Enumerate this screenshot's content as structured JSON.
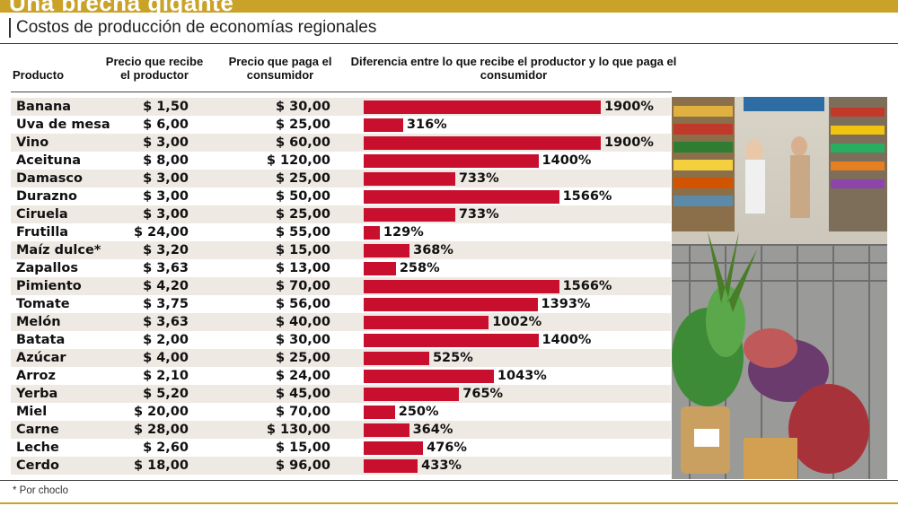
{
  "title": "Una brecha gigante",
  "subtitle": "Costos de producción de economías regionales",
  "headers": {
    "producto": "Producto",
    "recibe": "Precio que recibe el productor",
    "paga": "Precio que paga el consumidor",
    "diferencia": "Diferencia entre lo que recibe el productor y lo que paga el consumidor"
  },
  "footnote": "* Por choclo",
  "colors": {
    "bar": "#c8102e",
    "stripe": "#efe9e3",
    "title_bar": "#c9a227"
  },
  "chart_data": {
    "type": "bar",
    "orientation": "horizontal",
    "categories": [
      "Banana",
      "Uva de mesa",
      "Vino",
      "Aceituna",
      "Damasco",
      "Durazno",
      "Ciruela",
      "Frutilla",
      "Maíz dulce*",
      "Zapallos",
      "Pimiento",
      "Tomate",
      "Melón",
      "Batata",
      "Azúcar",
      "Arroz",
      "Yerba",
      "Miel",
      "Carne",
      "Leche",
      "Cerdo"
    ],
    "precio_productor": [
      "$ 1,50",
      "$ 6,00",
      "$ 3,00",
      "$ 8,00",
      "$ 3,00",
      "$ 3,00",
      "$ 3,00",
      "$ 24,00",
      "$ 3,20",
      "$ 3,63",
      "$ 4,20",
      "$ 3,75",
      "$ 3,63",
      "$ 2,00",
      "$ 4,00",
      "$ 2,10",
      "$ 5,20",
      "$ 20,00",
      "$ 28,00",
      "$ 2,60",
      "$ 18,00"
    ],
    "precio_consumidor": [
      "$ 30,00",
      "$ 25,00",
      "$ 60,00",
      "$ 120,00",
      "$ 25,00",
      "$ 50,00",
      "$ 25,00",
      "$ 55,00",
      "$ 15,00",
      "$ 13,00",
      "$ 70,00",
      "$ 56,00",
      "$ 40,00",
      "$ 30,00",
      "$ 25,00",
      "$ 24,00",
      "$ 45,00",
      "$ 70,00",
      "$ 130,00",
      "$ 15,00",
      "$ 96,00"
    ],
    "values": [
      1900,
      316,
      1900,
      1400,
      733,
      1566,
      733,
      129,
      368,
      258,
      1566,
      1393,
      1002,
      1400,
      525,
      1043,
      765,
      250,
      364,
      476,
      433
    ],
    "value_labels": [
      "1900%",
      "316%",
      "1900%",
      "1400%",
      "733%",
      "1566%",
      "733%",
      "129%",
      "368%",
      "258%",
      "1566%",
      "1393%",
      "1002%",
      "1400%",
      "525%",
      "1043%",
      "765%",
      "250%",
      "364%",
      "476%",
      "433%"
    ],
    "xlim": [
      0,
      1900
    ]
  }
}
